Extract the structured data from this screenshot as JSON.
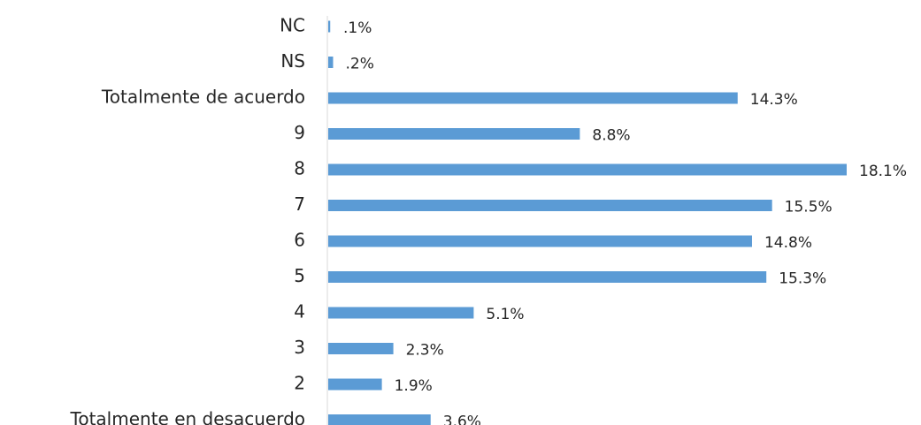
{
  "chart_data": {
    "type": "bar",
    "orientation": "horizontal",
    "categories": [
      "NC",
      "NS",
      "Totalmente de acuerdo",
      "9",
      "8",
      "7",
      "6",
      "5",
      "4",
      "3",
      "2",
      "Totalmente en desacuerdo"
    ],
    "values": [
      0.1,
      0.2,
      14.3,
      8.8,
      18.1,
      15.5,
      14.8,
      15.3,
      5.1,
      2.3,
      1.9,
      3.6
    ],
    "value_labels": [
      ".1%",
      ".2%",
      "14.3%",
      "8.8%",
      "18.1%",
      "15.5%",
      "14.8%",
      "15.3%",
      "5.1%",
      "2.3%",
      "1.9%",
      "3.6%"
    ],
    "color": "#5b9bd5"
  }
}
